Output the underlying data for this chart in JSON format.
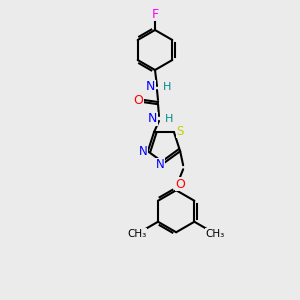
{
  "bg_color": "#ebebeb",
  "bond_color": "#000000",
  "atom_colors": {
    "F": "#ff00ff",
    "N": "#0000ff",
    "O": "#ff0000",
    "S": "#cccc00",
    "H": "#008b8b",
    "C": "#000000"
  }
}
